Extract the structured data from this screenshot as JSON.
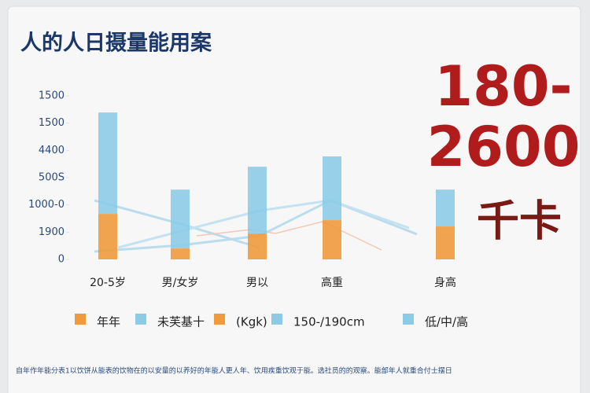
{
  "chart_data": {
    "type": "bar",
    "stacked": true,
    "title": "人的人日摄量能用案",
    "annotations": [
      "180-",
      "2600",
      "千卡"
    ],
    "categories": [
      "20-5岁",
      "男/女岁",
      "男以",
      "高重",
      "身高"
    ],
    "series": [
      {
        "name": "年年",
        "color": "#ef9a3c",
        "values": [
          1.67,
          0.4,
          0.95,
          1.44,
          1.21
        ]
      },
      {
        "name": "未芙基十",
        "color": "#8ccbe5",
        "values": [
          3.72,
          2.16,
          2.45,
          2.34,
          1.35
        ]
      }
    ],
    "legend_extra": [
      {
        "name": "(Kgk)",
        "color": "#ef9a3c"
      },
      {
        "name": "150-/190cm",
        "color": "#8ccbe5"
      },
      {
        "name": "低/中/高",
        "color": "#8ccbe5"
      }
    ],
    "ylim": [
      0,
      6
    ],
    "yticks": [
      {
        "value": 0,
        "label": "0"
      },
      {
        "value": 1,
        "label": "1900"
      },
      {
        "value": 2,
        "label": "1000-0"
      },
      {
        "value": 3,
        "label": "500S"
      },
      {
        "value": 4,
        "label": "4400"
      },
      {
        "value": 5,
        "label": "1500"
      },
      {
        "value": 6,
        "label": "1500"
      }
    ],
    "footnote": "自年作年能分表1以饮饼从能表的饮物在的以安量的以养好的年能人更人年、饮用疾重饮观于能。选社员的的观察。能部年人就重合付士摆日"
  }
}
